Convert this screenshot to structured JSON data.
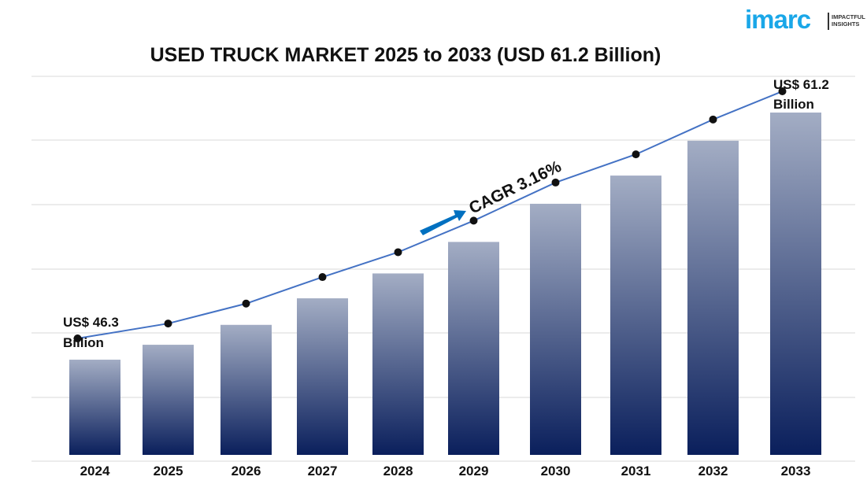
{
  "chart_data": {
    "type": "bar",
    "title": "USED TRUCK MARKET 2025 to 2033 (USD 61.2 Billion)",
    "categories": [
      "2024",
      "2025",
      "2026",
      "2027",
      "2028",
      "2029",
      "2030",
      "2031",
      "2032",
      "2033"
    ],
    "values": [
      46.3,
      47.2,
      48.4,
      50.0,
      51.5,
      53.4,
      55.7,
      57.4,
      59.5,
      61.2
    ],
    "overlay": "line with markers following bar values",
    "grid": true,
    "annotations": {
      "start": [
        "US$ 46.3",
        "Billion"
      ],
      "end": [
        "US$ 61.2",
        "Billion"
      ],
      "cagr": "CAGR 3.16%"
    },
    "colors": {
      "bar_top": "#a3adc4",
      "bar_bottom": "#0a1f5c",
      "line": "#4472c4",
      "arrow": "#0070c0",
      "marker": "#111111"
    }
  },
  "logo": {
    "name": "imarc",
    "tagline_1": "IMPACTFUL",
    "tagline_2": "INSIGHTS",
    "color": "#1aa7e8"
  }
}
